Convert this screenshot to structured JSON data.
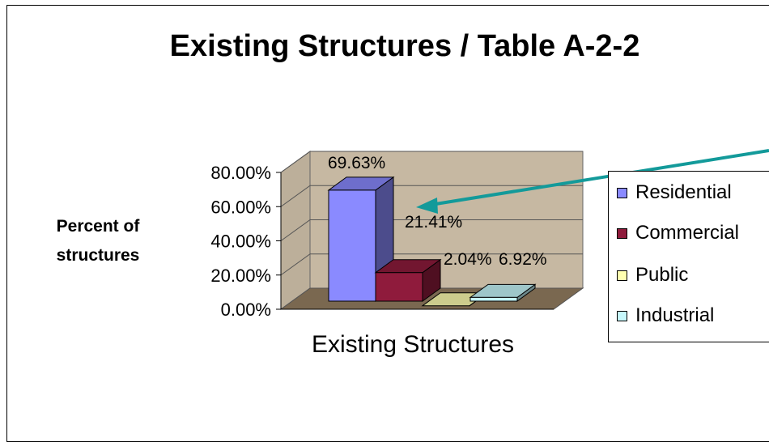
{
  "chart_data": {
    "type": "bar",
    "title": "Existing Structures / Table A-2-2",
    "ylabel": "Percent of structures",
    "xlabel": "Existing Structures",
    "ylim": [
      0,
      80
    ],
    "yticks": [
      "0.00%",
      "20.00%",
      "40.00%",
      "60.00%",
      "80.00%"
    ],
    "categories": [
      "Existing Structures"
    ],
    "series": [
      {
        "name": "Residential",
        "value": 69.63,
        "label": "69.63%",
        "color": "#8a8aff"
      },
      {
        "name": "Commercial",
        "value": 21.41,
        "label": "21.41%",
        "color": "#8f1b3c"
      },
      {
        "name": "Public",
        "value": 2.04,
        "label": "2.04%",
        "color": "#ffffb0"
      },
      {
        "name": "Industrial",
        "value": 6.92,
        "label": "6.92%",
        "color": "#c6f7fb"
      }
    ],
    "legend_position": "right",
    "grid": true,
    "style": "3d-clustered-column"
  },
  "colors": {
    "wall": "#c6b8a2",
    "floor": "#7a6850",
    "arrow": "#139a9a"
  }
}
